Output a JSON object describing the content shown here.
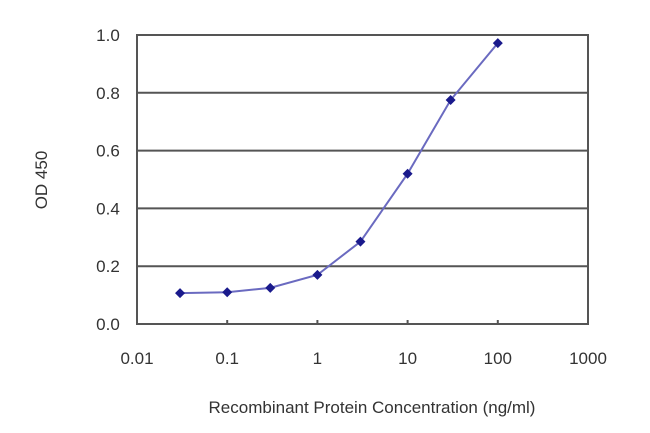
{
  "chart_data": {
    "type": "line",
    "title": "",
    "xlabel": "Recombinant Protein Concentration (ng/ml)",
    "ylabel": "OD 450",
    "x_scale": "log",
    "xlim": [
      0.01,
      1000
    ],
    "ylim": [
      0.0,
      1.0
    ],
    "x_ticks": [
      "0.01",
      "0.1",
      "1",
      "10",
      "100",
      "1000"
    ],
    "y_ticks": [
      "0.0",
      "0.2",
      "0.4",
      "0.6",
      "0.8",
      "1.0"
    ],
    "grid": "horizontal",
    "legend": "none",
    "series": [
      {
        "name": "OD 450",
        "color": "#1a1a8c",
        "line_color": "#6a6ac0",
        "marker": "diamond",
        "x": [
          0.03,
          0.1,
          0.3,
          1,
          3,
          10,
          30,
          100
        ],
        "values": [
          0.107,
          0.11,
          0.125,
          0.17,
          0.285,
          0.52,
          0.775,
          0.972
        ]
      }
    ]
  },
  "colors": {
    "axis": "#555555",
    "grid": "#555555",
    "text": "#333333",
    "marker": "#1a1a8c",
    "line": "#6a6ac0"
  }
}
